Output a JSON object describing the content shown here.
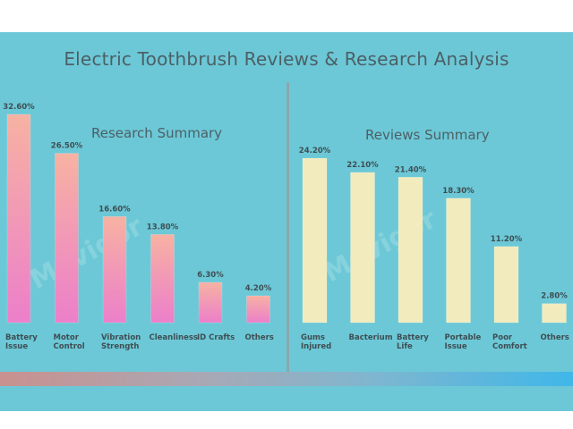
{
  "title": "Electric Toothbrush Reviews & Research Analysis",
  "watermark": "Movigor",
  "colors": {
    "background": "#6cc8d6",
    "left_bar_top": "#f7b2a2",
    "left_bar_bottom": "#ec7fca",
    "right_bar": "#f2ebbd",
    "text": "#4d5f66"
  },
  "chart_data": [
    {
      "type": "bar",
      "title": "Research Summary",
      "categories": [
        [
          "Battery",
          "Issue"
        ],
        [
          "Motor",
          "Control"
        ],
        [
          "Vibration",
          "Strength"
        ],
        [
          "Cleanliness"
        ],
        [
          "ID Crafts"
        ],
        [
          "Others"
        ]
      ],
      "values": [
        32.6,
        26.5,
        16.6,
        13.8,
        6.3,
        4.2
      ],
      "value_labels": [
        "32.60%",
        "26.50%",
        "16.60%",
        "13.80%",
        "6.30%",
        "4.20%"
      ],
      "ylim": [
        0,
        32.6
      ],
      "grid": false,
      "legend": "none"
    },
    {
      "type": "bar",
      "title": "Reviews Summary",
      "categories": [
        [
          "Gums",
          "Injured"
        ],
        [
          "Bacterium"
        ],
        [
          "Battery",
          "Life"
        ],
        [
          "Portable",
          "Issue"
        ],
        [
          "Poor",
          "Comfort"
        ],
        [
          "Others"
        ]
      ],
      "values": [
        24.2,
        22.1,
        21.4,
        18.3,
        11.2,
        2.8
      ],
      "value_labels": [
        "24.20%",
        "22.10%",
        "21.40%",
        "18.30%",
        "11.20%",
        "2.80%"
      ],
      "ylim": [
        0,
        24.2
      ],
      "grid": false,
      "legend": "none"
    }
  ]
}
